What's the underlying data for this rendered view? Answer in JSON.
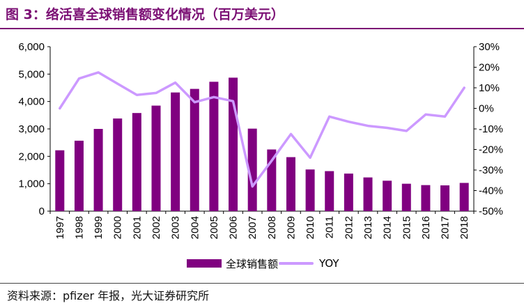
{
  "title": "图 3：络活喜全球销售额变化情况（百万美元）",
  "source": "资料来源：pfizer 年报，光大证券研究所",
  "colors": {
    "bar": "#800080",
    "line": "#cc99ff",
    "title": "#7b0f74"
  },
  "chart_data": {
    "type": "bar",
    "categories": [
      "1997",
      "1998",
      "1999",
      "2000",
      "2001",
      "2002",
      "2003",
      "2004",
      "2005",
      "2006",
      "2007",
      "2008",
      "2009",
      "2010",
      "2011",
      "2012",
      "2013",
      "2014",
      "2015",
      "2016",
      "2017",
      "2018"
    ],
    "series": [
      {
        "name": "全球销售额",
        "type": "bar",
        "axis": "left",
        "values": [
          2220,
          2570,
          3000,
          3380,
          3580,
          3850,
          4330,
          4460,
          4720,
          4870,
          3010,
          2250,
          1970,
          1520,
          1460,
          1370,
          1230,
          1110,
          1000,
          950,
          940,
          1030
        ]
      },
      {
        "name": "YOY",
        "type": "line",
        "axis": "right",
        "values": [
          0.0,
          14.5,
          17.5,
          12.0,
          6.5,
          7.5,
          12.5,
          3.0,
          5.5,
          3.5,
          -38.0,
          -25.5,
          -12.5,
          -24.0,
          -4.0,
          -6.5,
          -8.5,
          -9.5,
          -11.0,
          -3.0,
          -4.0,
          10.0
        ]
      }
    ],
    "y_left": {
      "ylim": [
        0,
        6000
      ],
      "ticks": [
        "0",
        "1,000",
        "2,000",
        "3,000",
        "4,000",
        "5,000",
        "6,000"
      ],
      "tick_values": [
        0,
        1000,
        2000,
        3000,
        4000,
        5000,
        6000
      ]
    },
    "y_right": {
      "ylim": [
        -50,
        30
      ],
      "ticks": [
        "-50%",
        "-40%",
        "-30%",
        "-20%",
        "-10%",
        "0%",
        "10%",
        "20%",
        "30%"
      ],
      "tick_values": [
        -50,
        -40,
        -30,
        -20,
        -10,
        0,
        10,
        20,
        30
      ]
    },
    "legend_position": "bottom",
    "grid": false
  }
}
